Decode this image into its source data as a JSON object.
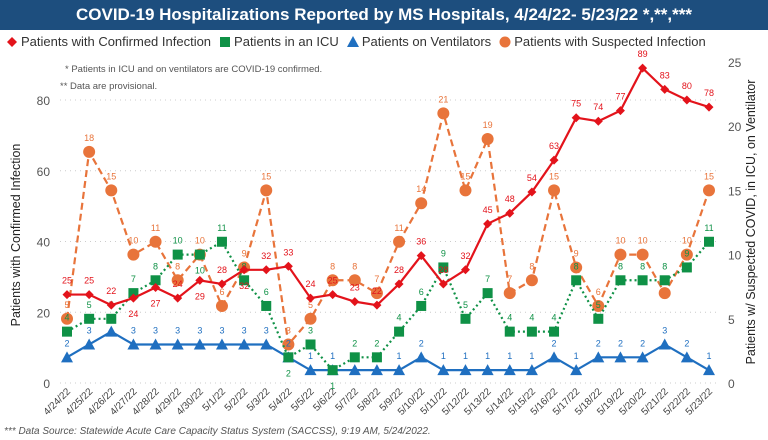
{
  "chart_data": {
    "type": "line",
    "title": "COVID-19 Hospitalizations Reported by MS Hospitals, 4/24/22- 5/23/22 *,**,***",
    "notes": [
      "* Patients in ICU and on ventilators are COVID-19 confirmed.",
      "** Data are provisional."
    ],
    "footer": "*** Data Source: Statewide Acute Care Capacity Status System (SACCSS), 9:19 AM, 5/24/2022.",
    "ylabel_left": "Patients with Confirmed Infection",
    "ylabel_right": "Patients w/ Suspected COVID, in ICU, on Ventilator",
    "ylim_left": [
      0,
      88
    ],
    "yticks_left": [
      0,
      20,
      40,
      60,
      80
    ],
    "ylim_right": [
      0,
      25
    ],
    "yticks_right": [
      0,
      5,
      10,
      15,
      20,
      25
    ],
    "grid": true,
    "legend": "top",
    "x": [
      "4/24/22",
      "4/25/22",
      "4/26/22",
      "4/27/22",
      "4/28/22",
      "4/29/22",
      "4/30/22",
      "5/1/22",
      "5/2/22",
      "5/3/22",
      "5/4/22",
      "5/5/22",
      "5/6/22",
      "5/7/22",
      "5/8/22",
      "5/9/22",
      "5/10/22",
      "5/11/22",
      "5/12/22",
      "5/13/22",
      "5/14/22",
      "5/15/22",
      "5/16/22",
      "5/17/22",
      "5/18/22",
      "5/19/22",
      "5/20/22",
      "5/21/22",
      "5/22/22",
      "5/23/22"
    ],
    "series": [
      {
        "name": "Patients with Confirmed Infection",
        "axis": "left",
        "color": "#e3131b",
        "marker": "diamond",
        "dash": "solid",
        "values": [
          25,
          25,
          22,
          24,
          27,
          24,
          29,
          28,
          32,
          32,
          33,
          24,
          25,
          23,
          22,
          28,
          36,
          28,
          32,
          45,
          48,
          54,
          63,
          75,
          74,
          77,
          89,
          83,
          80,
          78
        ]
      },
      {
        "name": "Patients in an ICU",
        "axis": "right",
        "color": "#0f9146",
        "marker": "square",
        "dash": "dotted",
        "values": [
          4,
          5,
          5,
          7,
          8,
          10,
          10,
          11,
          8,
          6,
          2,
          3,
          1,
          2,
          2,
          4,
          6,
          9,
          5,
          7,
          4,
          4,
          4,
          8,
          5,
          8,
          8,
          8,
          9,
          11
        ]
      },
      {
        "name": "Patients on Ventilators",
        "axis": "right",
        "color": "#1f6fc0",
        "marker": "triangle",
        "dash": "solid",
        "values": [
          2,
          3,
          4,
          3,
          3,
          3,
          3,
          3,
          3,
          3,
          2,
          1,
          1,
          1,
          1,
          1,
          2,
          1,
          1,
          1,
          1,
          1,
          2,
          1,
          2,
          2,
          2,
          3,
          2,
          1
        ]
      },
      {
        "name": "Patients with Suspected Infection",
        "axis": "right",
        "color": "#e8743b",
        "marker": "circle",
        "dash": "dashed",
        "values": [
          5,
          18,
          15,
          10,
          11,
          8,
          10,
          6,
          9,
          15,
          3,
          5,
          8,
          8,
          7,
          11,
          14,
          21,
          15,
          19,
          7,
          8,
          15,
          9,
          6,
          10,
          10,
          7,
          10,
          15
        ]
      }
    ]
  }
}
